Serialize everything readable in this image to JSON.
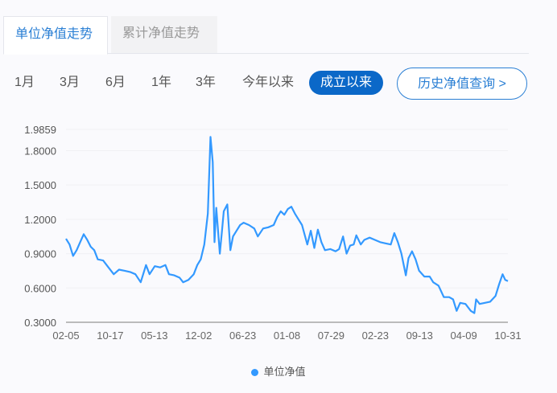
{
  "tabs": [
    {
      "label": "单位净值走势",
      "active": true
    },
    {
      "label": "累计净值走势",
      "active": false
    }
  ],
  "ranges": [
    "1月",
    "3月",
    "6月",
    "1年",
    "3年",
    "今年以来",
    "成立以来"
  ],
  "selected_range": "成立以来",
  "history_button": "历史净值查询 >",
  "chart_data": {
    "type": "line",
    "x_tick_labels": [
      "02-05",
      "10-17",
      "05-13",
      "12-02",
      "06-23",
      "01-08",
      "07-29",
      "02-23",
      "09-13",
      "04-09",
      "10-31"
    ],
    "y_tick_labels": [
      "0.3000",
      "0.6000",
      "0.9000",
      "1.2000",
      "1.5000",
      "1.8000",
      "1.9859"
    ],
    "ylim": [
      0.3,
      1.9859
    ],
    "grid": true,
    "legend_position": "bottom",
    "color": "#3399ff",
    "series": [
      {
        "name": "单位净值",
        "points": [
          [
            0,
            1.03
          ],
          [
            0.08,
            0.98
          ],
          [
            0.16,
            0.88
          ],
          [
            0.24,
            0.93
          ],
          [
            0.32,
            1.0
          ],
          [
            0.4,
            1.07
          ],
          [
            0.48,
            1.02
          ],
          [
            0.56,
            0.96
          ],
          [
            0.64,
            0.93
          ],
          [
            0.72,
            0.85
          ],
          [
            0.84,
            0.84
          ],
          [
            0.96,
            0.78
          ],
          [
            1.08,
            0.72
          ],
          [
            1.2,
            0.76
          ],
          [
            1.33,
            0.75
          ],
          [
            1.45,
            0.74
          ],
          [
            1.57,
            0.72
          ],
          [
            1.69,
            0.65
          ],
          [
            1.81,
            0.8
          ],
          [
            1.89,
            0.72
          ],
          [
            2.01,
            0.79
          ],
          [
            2.13,
            0.78
          ],
          [
            2.25,
            0.8
          ],
          [
            2.33,
            0.72
          ],
          [
            2.45,
            0.71
          ],
          [
            2.57,
            0.69
          ],
          [
            2.65,
            0.65
          ],
          [
            2.77,
            0.67
          ],
          [
            2.89,
            0.72
          ],
          [
            2.97,
            0.8
          ],
          [
            3.05,
            0.85
          ],
          [
            3.13,
            0.98
          ],
          [
            3.21,
            1.25
          ],
          [
            3.27,
            1.92
          ],
          [
            3.32,
            1.7
          ],
          [
            3.36,
            1.0
          ],
          [
            3.4,
            1.3
          ],
          [
            3.44,
            1.1
          ],
          [
            3.48,
            0.9
          ],
          [
            3.53,
            1.1
          ],
          [
            3.57,
            1.27
          ],
          [
            3.65,
            1.33
          ],
          [
            3.72,
            0.93
          ],
          [
            3.78,
            1.05
          ],
          [
            3.86,
            1.1
          ],
          [
            3.94,
            1.15
          ],
          [
            4.02,
            1.17
          ],
          [
            4.14,
            1.15
          ],
          [
            4.26,
            1.12
          ],
          [
            4.34,
            1.05
          ],
          [
            4.46,
            1.12
          ],
          [
            4.58,
            1.13
          ],
          [
            4.7,
            1.15
          ],
          [
            4.78,
            1.22
          ],
          [
            4.86,
            1.27
          ],
          [
            4.94,
            1.24
          ],
          [
            5.02,
            1.29
          ],
          [
            5.1,
            1.31
          ],
          [
            5.18,
            1.25
          ],
          [
            5.26,
            1.2
          ],
          [
            5.34,
            1.15
          ],
          [
            5.46,
            0.98
          ],
          [
            5.54,
            1.1
          ],
          [
            5.62,
            0.95
          ],
          [
            5.7,
            1.11
          ],
          [
            5.78,
            1.0
          ],
          [
            5.86,
            0.93
          ],
          [
            5.98,
            0.94
          ],
          [
            6.1,
            0.92
          ],
          [
            6.18,
            0.94
          ],
          [
            6.27,
            1.05
          ],
          [
            6.35,
            0.9
          ],
          [
            6.43,
            0.97
          ],
          [
            6.51,
            0.98
          ],
          [
            6.57,
            1.06
          ],
          [
            6.67,
            0.98
          ],
          [
            6.75,
            1.02
          ],
          [
            6.87,
            1.04
          ],
          [
            6.99,
            1.02
          ],
          [
            7.11,
            1.0
          ],
          [
            7.23,
            0.99
          ],
          [
            7.35,
            0.98
          ],
          [
            7.43,
            1.08
          ],
          [
            7.51,
            1.0
          ],
          [
            7.59,
            0.9
          ],
          [
            7.69,
            0.71
          ],
          [
            7.75,
            0.86
          ],
          [
            7.83,
            0.92
          ],
          [
            7.91,
            0.85
          ],
          [
            7.99,
            0.75
          ],
          [
            8.11,
            0.7
          ],
          [
            8.23,
            0.7
          ],
          [
            8.31,
            0.65
          ],
          [
            8.43,
            0.62
          ],
          [
            8.55,
            0.52
          ],
          [
            8.67,
            0.52
          ],
          [
            8.76,
            0.5
          ],
          [
            8.84,
            0.4
          ],
          [
            8.92,
            0.47
          ],
          [
            9.04,
            0.46
          ],
          [
            9.16,
            0.4
          ],
          [
            9.24,
            0.38
          ],
          [
            9.28,
            0.5
          ],
          [
            9.36,
            0.46
          ],
          [
            9.48,
            0.47
          ],
          [
            9.6,
            0.48
          ],
          [
            9.72,
            0.53
          ],
          [
            9.8,
            0.63
          ],
          [
            9.88,
            0.72
          ],
          [
            9.94,
            0.67
          ],
          [
            10,
            0.66
          ]
        ]
      }
    ]
  }
}
